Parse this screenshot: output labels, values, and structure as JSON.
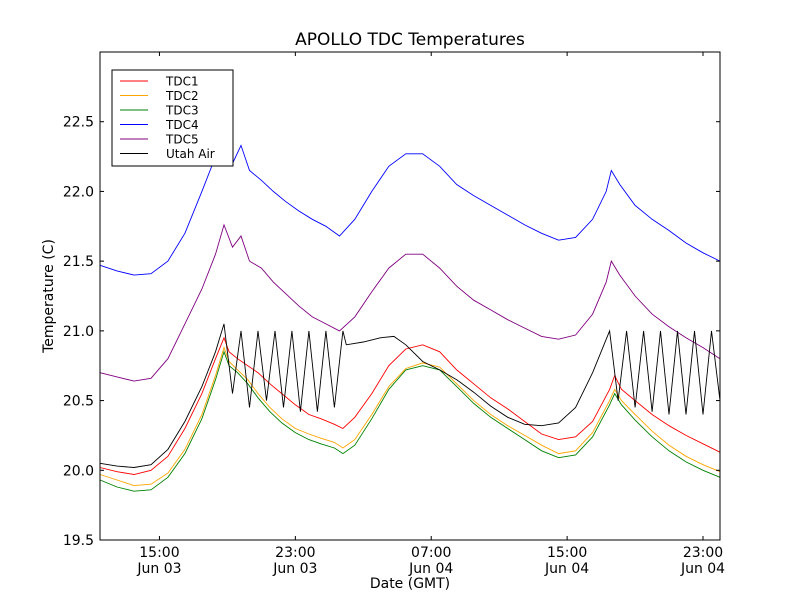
{
  "chart_data": {
    "type": "line",
    "title": "APOLLO TDC Temperatures",
    "xlabel": "Date (GMT)",
    "ylabel": "Temperature (C)",
    "x_units": "hours since Jun 03 00:00 GMT",
    "xlim": [
      11.5,
      48.0
    ],
    "ylim": [
      19.5,
      23.0
    ],
    "yticks": [
      19.5,
      20.0,
      20.5,
      21.0,
      21.5,
      22.0,
      22.5
    ],
    "ytick_labels": [
      "19.5",
      "20.0",
      "20.5",
      "21.0",
      "21.5",
      "22.0",
      "22.5"
    ],
    "xticks": [
      15,
      23,
      31,
      39,
      47
    ],
    "xtick_labels": [
      {
        "time": "15:00",
        "date": "Jun 03"
      },
      {
        "time": "23:00",
        "date": "Jun 03"
      },
      {
        "time": "07:00",
        "date": "Jun 04"
      },
      {
        "time": "15:00",
        "date": "Jun 04"
      },
      {
        "time": "23:00",
        "date": "Jun 04"
      }
    ],
    "grid": false,
    "legend_position": "top-left",
    "series": [
      {
        "name": "TDC1",
        "color": "#ff0000",
        "points": [
          [
            11.5,
            20.02
          ],
          [
            12.5,
            19.99
          ],
          [
            13.5,
            19.97
          ],
          [
            14.5,
            20.0
          ],
          [
            15.5,
            20.1
          ],
          [
            16.5,
            20.3
          ],
          [
            17.5,
            20.55
          ],
          [
            18.3,
            20.8
          ],
          [
            18.8,
            20.95
          ],
          [
            19.1,
            20.85
          ],
          [
            19.6,
            20.8
          ],
          [
            20.2,
            20.75
          ],
          [
            20.8,
            20.7
          ],
          [
            21.5,
            20.62
          ],
          [
            22.2,
            20.55
          ],
          [
            23,
            20.47
          ],
          [
            23.8,
            20.4
          ],
          [
            24.5,
            20.37
          ],
          [
            25.3,
            20.33
          ],
          [
            25.8,
            20.3
          ],
          [
            26.5,
            20.38
          ],
          [
            27.5,
            20.55
          ],
          [
            28.5,
            20.75
          ],
          [
            29.5,
            20.87
          ],
          [
            30.5,
            20.9
          ],
          [
            31.5,
            20.85
          ],
          [
            32.5,
            20.72
          ],
          [
            33.5,
            20.62
          ],
          [
            34.5,
            20.52
          ],
          [
            35.5,
            20.44
          ],
          [
            36.5,
            20.35
          ],
          [
            37.5,
            20.26
          ],
          [
            38.5,
            20.22
          ],
          [
            39.5,
            20.24
          ],
          [
            40.5,
            20.35
          ],
          [
            41.5,
            20.58
          ],
          [
            41.8,
            20.68
          ],
          [
            42.2,
            20.58
          ],
          [
            43,
            20.5
          ],
          [
            44,
            20.4
          ],
          [
            45,
            20.32
          ],
          [
            46,
            20.25
          ],
          [
            47,
            20.19
          ],
          [
            48,
            20.13
          ]
        ]
      },
      {
        "name": "TDC2",
        "color": "#ffa500",
        "points": [
          [
            11.5,
            19.97
          ],
          [
            12.5,
            19.93
          ],
          [
            13.5,
            19.89
          ],
          [
            14.5,
            19.9
          ],
          [
            15.5,
            19.98
          ],
          [
            16.5,
            20.15
          ],
          [
            17.5,
            20.4
          ],
          [
            18.3,
            20.68
          ],
          [
            18.8,
            20.88
          ],
          [
            19.1,
            20.78
          ],
          [
            19.6,
            20.72
          ],
          [
            20.2,
            20.65
          ],
          [
            20.8,
            20.55
          ],
          [
            21.5,
            20.45
          ],
          [
            22.2,
            20.37
          ],
          [
            23,
            20.3
          ],
          [
            23.8,
            20.26
          ],
          [
            24.5,
            20.23
          ],
          [
            25.3,
            20.2
          ],
          [
            25.8,
            20.16
          ],
          [
            26.5,
            20.22
          ],
          [
            27.5,
            20.4
          ],
          [
            28.5,
            20.6
          ],
          [
            29.5,
            20.73
          ],
          [
            30.5,
            20.77
          ],
          [
            31.5,
            20.74
          ],
          [
            32.5,
            20.62
          ],
          [
            33.5,
            20.5
          ],
          [
            34.5,
            20.4
          ],
          [
            35.5,
            20.32
          ],
          [
            36.5,
            20.25
          ],
          [
            37.5,
            20.18
          ],
          [
            38.5,
            20.12
          ],
          [
            39.5,
            20.14
          ],
          [
            40.5,
            20.27
          ],
          [
            41.5,
            20.5
          ],
          [
            41.8,
            20.58
          ],
          [
            42.2,
            20.5
          ],
          [
            43,
            20.4
          ],
          [
            44,
            20.28
          ],
          [
            45,
            20.18
          ],
          [
            46,
            20.1
          ],
          [
            47,
            20.04
          ],
          [
            48,
            19.99
          ]
        ]
      },
      {
        "name": "TDC3",
        "color": "#008000",
        "points": [
          [
            11.5,
            19.93
          ],
          [
            12.5,
            19.88
          ],
          [
            13.5,
            19.85
          ],
          [
            14.5,
            19.86
          ],
          [
            15.5,
            19.95
          ],
          [
            16.5,
            20.12
          ],
          [
            17.5,
            20.37
          ],
          [
            18.3,
            20.65
          ],
          [
            18.8,
            20.85
          ],
          [
            19.1,
            20.75
          ],
          [
            19.6,
            20.7
          ],
          [
            20.2,
            20.62
          ],
          [
            20.8,
            20.52
          ],
          [
            21.5,
            20.42
          ],
          [
            22.2,
            20.34
          ],
          [
            23,
            20.27
          ],
          [
            23.8,
            20.22
          ],
          [
            24.5,
            20.19
          ],
          [
            25.3,
            20.16
          ],
          [
            25.8,
            20.12
          ],
          [
            26.5,
            20.18
          ],
          [
            27.5,
            20.37
          ],
          [
            28.5,
            20.58
          ],
          [
            29.5,
            20.72
          ],
          [
            30.5,
            20.75
          ],
          [
            31.5,
            20.72
          ],
          [
            32.5,
            20.6
          ],
          [
            33.5,
            20.48
          ],
          [
            34.5,
            20.38
          ],
          [
            35.5,
            20.3
          ],
          [
            36.5,
            20.22
          ],
          [
            37.5,
            20.14
          ],
          [
            38.5,
            20.09
          ],
          [
            39.5,
            20.11
          ],
          [
            40.5,
            20.24
          ],
          [
            41.5,
            20.47
          ],
          [
            41.8,
            20.55
          ],
          [
            42.2,
            20.47
          ],
          [
            43,
            20.36
          ],
          [
            44,
            20.24
          ],
          [
            45,
            20.14
          ],
          [
            46,
            20.06
          ],
          [
            47,
            20.0
          ],
          [
            48,
            19.95
          ]
        ]
      },
      {
        "name": "TDC4",
        "color": "#0000ff",
        "points": [
          [
            11.5,
            21.47
          ],
          [
            12.5,
            21.43
          ],
          [
            13.5,
            21.4
          ],
          [
            14.5,
            21.41
          ],
          [
            15.5,
            21.5
          ],
          [
            16.5,
            21.7
          ],
          [
            17.5,
            22.0
          ],
          [
            18.3,
            22.25
          ],
          [
            18.8,
            22.3
          ],
          [
            19.3,
            22.2
          ],
          [
            19.8,
            22.33
          ],
          [
            20.3,
            22.15
          ],
          [
            21,
            22.08
          ],
          [
            21.7,
            22.0
          ],
          [
            22.4,
            21.93
          ],
          [
            23.2,
            21.86
          ],
          [
            24,
            21.8
          ],
          [
            24.8,
            21.75
          ],
          [
            25.6,
            21.68
          ],
          [
            26.5,
            21.8
          ],
          [
            27.5,
            22.0
          ],
          [
            28.5,
            22.18
          ],
          [
            29.5,
            22.27
          ],
          [
            30.5,
            22.27
          ],
          [
            31.5,
            22.18
          ],
          [
            32.5,
            22.05
          ],
          [
            33.5,
            21.97
          ],
          [
            34.5,
            21.9
          ],
          [
            35.5,
            21.83
          ],
          [
            36.5,
            21.76
          ],
          [
            37.5,
            21.7
          ],
          [
            38.5,
            21.65
          ],
          [
            39.5,
            21.67
          ],
          [
            40.5,
            21.8
          ],
          [
            41.3,
            22.0
          ],
          [
            41.6,
            22.15
          ],
          [
            42.1,
            22.05
          ],
          [
            43,
            21.9
          ],
          [
            44,
            21.8
          ],
          [
            45,
            21.72
          ],
          [
            46,
            21.63
          ],
          [
            47,
            21.56
          ],
          [
            48,
            21.5
          ]
        ]
      },
      {
        "name": "TDC5",
        "color": "#800080",
        "points": [
          [
            11.5,
            20.7
          ],
          [
            12.5,
            20.67
          ],
          [
            13.5,
            20.64
          ],
          [
            14.5,
            20.66
          ],
          [
            15.5,
            20.8
          ],
          [
            16.5,
            21.05
          ],
          [
            17.5,
            21.3
          ],
          [
            18.3,
            21.55
          ],
          [
            18.8,
            21.76
          ],
          [
            19.3,
            21.6
          ],
          [
            19.8,
            21.68
          ],
          [
            20.3,
            21.5
          ],
          [
            21,
            21.45
          ],
          [
            21.7,
            21.35
          ],
          [
            22.4,
            21.27
          ],
          [
            23.2,
            21.18
          ],
          [
            24,
            21.1
          ],
          [
            24.8,
            21.05
          ],
          [
            25.6,
            21.0
          ],
          [
            26.5,
            21.1
          ],
          [
            27.5,
            21.28
          ],
          [
            28.5,
            21.45
          ],
          [
            29.5,
            21.55
          ],
          [
            30.5,
            21.55
          ],
          [
            31.5,
            21.45
          ],
          [
            32.5,
            21.32
          ],
          [
            33.5,
            21.22
          ],
          [
            34.5,
            21.15
          ],
          [
            35.5,
            21.08
          ],
          [
            36.5,
            21.02
          ],
          [
            37.5,
            20.96
          ],
          [
            38.5,
            20.94
          ],
          [
            39.5,
            20.97
          ],
          [
            40.5,
            21.12
          ],
          [
            41.3,
            21.35
          ],
          [
            41.6,
            21.5
          ],
          [
            42.1,
            21.4
          ],
          [
            43,
            21.25
          ],
          [
            44,
            21.12
          ],
          [
            45,
            21.03
          ],
          [
            46,
            20.95
          ],
          [
            47,
            20.88
          ],
          [
            48,
            20.8
          ]
        ]
      },
      {
        "name": "Utah Air",
        "color": "#000000",
        "points": [
          [
            11.5,
            20.05
          ],
          [
            12.5,
            20.03
          ],
          [
            13.5,
            20.02
          ],
          [
            14.5,
            20.04
          ],
          [
            15.5,
            20.15
          ],
          [
            16.5,
            20.35
          ],
          [
            17.5,
            20.6
          ],
          [
            18.3,
            20.85
          ],
          [
            18.8,
            21.05
          ],
          [
            19.3,
            20.55
          ],
          [
            19.8,
            21.0
          ],
          [
            20.3,
            20.45
          ],
          [
            20.8,
            21.0
          ],
          [
            21.3,
            20.5
          ],
          [
            21.8,
            21.0
          ],
          [
            22.3,
            20.45
          ],
          [
            22.8,
            21.0
          ],
          [
            23.3,
            20.42
          ],
          [
            23.8,
            21.0
          ],
          [
            24.3,
            20.42
          ],
          [
            24.8,
            21.0
          ],
          [
            25.3,
            20.45
          ],
          [
            25.8,
            21.0
          ],
          [
            26.0,
            20.9
          ],
          [
            27.0,
            20.92
          ],
          [
            28.0,
            20.95
          ],
          [
            28.8,
            20.96
          ],
          [
            29.5,
            20.9
          ],
          [
            30.5,
            20.78
          ],
          [
            31.5,
            20.72
          ],
          [
            32.5,
            20.65
          ],
          [
            33.5,
            20.56
          ],
          [
            34.5,
            20.46
          ],
          [
            35.5,
            20.38
          ],
          [
            36.5,
            20.33
          ],
          [
            37.5,
            20.32
          ],
          [
            38.5,
            20.34
          ],
          [
            39.5,
            20.45
          ],
          [
            40.5,
            20.7
          ],
          [
            41.5,
            21.0
          ],
          [
            42.0,
            20.5
          ],
          [
            42.5,
            21.0
          ],
          [
            43.0,
            20.45
          ],
          [
            43.5,
            21.0
          ],
          [
            44.0,
            20.42
          ],
          [
            44.5,
            21.0
          ],
          [
            45.0,
            20.4
          ],
          [
            45.5,
            21.0
          ],
          [
            46.0,
            20.4
          ],
          [
            46.5,
            21.0
          ],
          [
            47.0,
            20.4
          ],
          [
            47.5,
            21.0
          ],
          [
            48,
            20.5
          ]
        ]
      }
    ]
  }
}
